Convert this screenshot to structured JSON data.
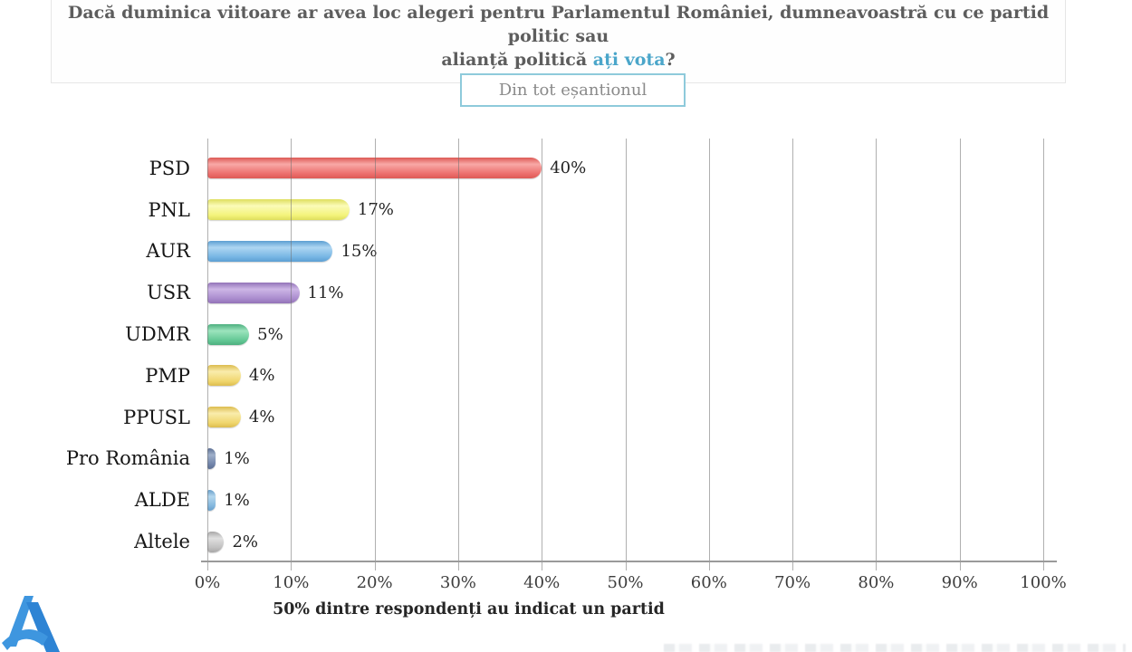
{
  "header": {
    "title_line1": "Dacă duminica viitoare ar avea loc alegeri pentru Parlamentul României, dumneavoastră cu ce partid politic sau",
    "title_line2_prefix": "alianță politică ",
    "title_line2_highlight": "ați vota",
    "title_line2_suffix": "?",
    "text_color": "#5d5d5d",
    "highlight_color": "#4ba6ca"
  },
  "filter_button": {
    "label": "Din tot eșantionul",
    "border_color": "#8ecadb",
    "text_color": "#8a8a8a"
  },
  "chart_data": {
    "type": "bar",
    "orientation": "horizontal",
    "title": "",
    "xlabel": "",
    "ylabel": "",
    "xlim": [
      0,
      100
    ],
    "grid": true,
    "categories": [
      "PSD",
      "PNL",
      "AUR",
      "USR",
      "UDMR",
      "PMP",
      "PPUSL",
      "Pro România",
      "ALDE",
      "Altele"
    ],
    "values": [
      40,
      17,
      15,
      11,
      5,
      4,
      4,
      1,
      1,
      2
    ],
    "value_labels": [
      "40%",
      "17%",
      "15%",
      "11%",
      "5%",
      "4%",
      "4%",
      "1%",
      "1%",
      "2%"
    ],
    "colors": [
      {
        "main": "#ec6e6c",
        "light": "#f8a8a6",
        "dark": "#dd5a56"
      },
      {
        "main": "#f3f379",
        "light": "#fbfbb8",
        "dark": "#dede5e"
      },
      {
        "main": "#76b5e4",
        "light": "#aed6f2",
        "dark": "#5d9fd2"
      },
      {
        "main": "#a98bcd",
        "light": "#cdb6e6",
        "dark": "#9373b8"
      },
      {
        "main": "#62c794",
        "light": "#9ce4bd",
        "dark": "#4daf7f"
      },
      {
        "main": "#f0d66d",
        "light": "#f9ecac",
        "dark": "#dcbc4e"
      },
      {
        "main": "#f0d66d",
        "light": "#f9ecac",
        "dark": "#dcbc4e"
      },
      {
        "main": "#7083a9",
        "light": "#9fb0ca",
        "dark": "#5c6f94"
      },
      {
        "main": "#82b6dd",
        "light": "#b4d7ee",
        "dark": "#699fc9"
      },
      {
        "main": "#c0bfbf",
        "light": "#e0e0e0",
        "dark": "#a8a7a7"
      }
    ],
    "x_ticks": [
      "0%",
      "10%",
      "20%",
      "30%",
      "40%",
      "50%",
      "60%",
      "70%",
      "80%",
      "90%",
      "100%"
    ],
    "legend": null,
    "caption": "50% dintre respondenți au indicat un partid"
  },
  "logo": {
    "name": "avangarde-a-logo",
    "color_left": "#3e96df",
    "color_right": "#2e84d4"
  }
}
